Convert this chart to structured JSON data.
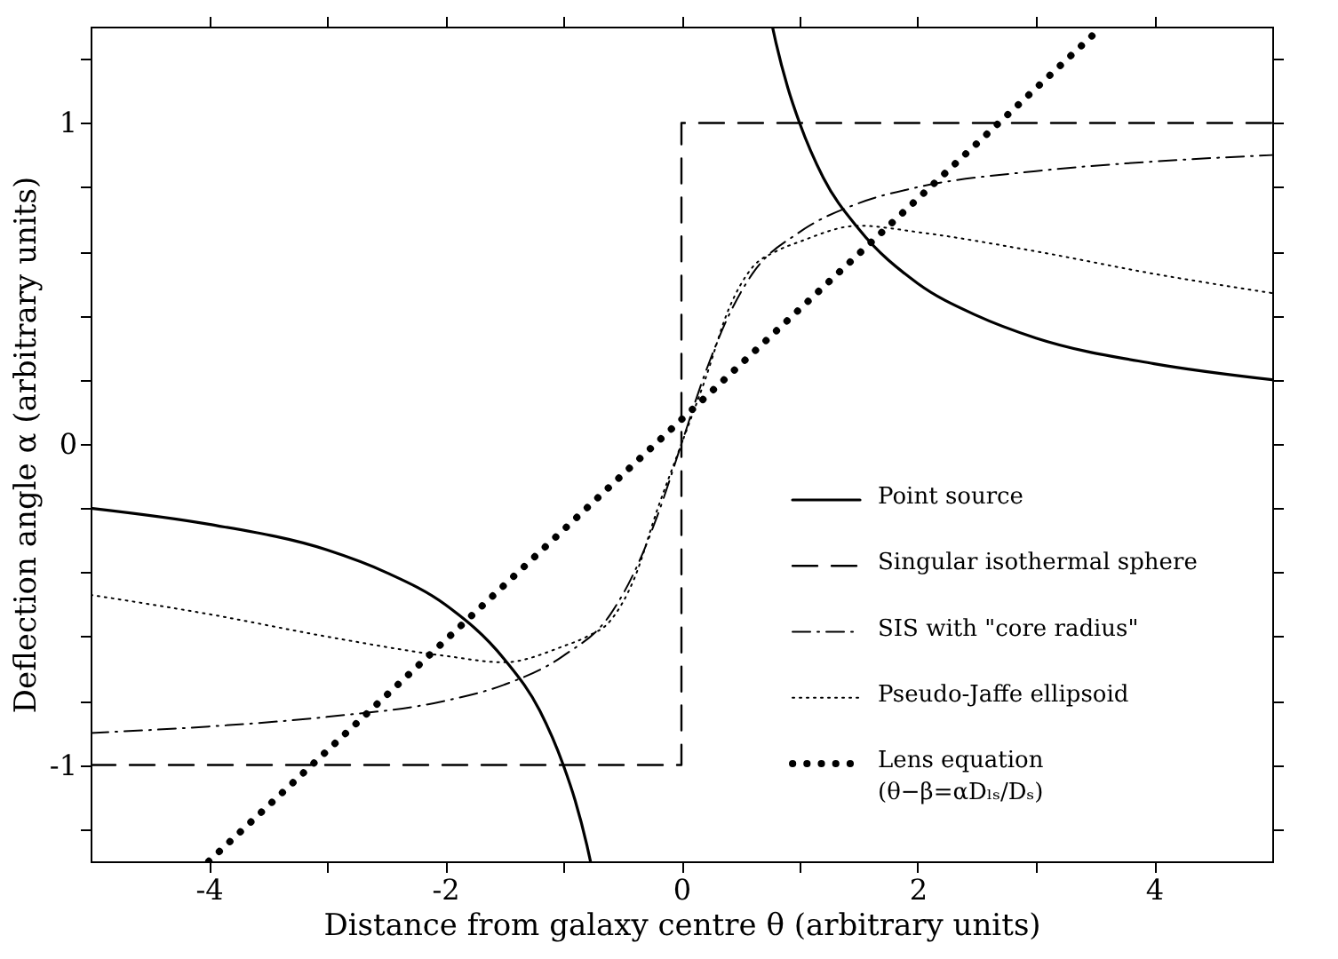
{
  "chart_data": {
    "type": "line",
    "xlabel": "Distance from galaxy centre θ (arbitrary units)",
    "ylabel": "Deflection angle α (arbitrary units)",
    "xlim": [
      -5,
      5
    ],
    "ylim": [
      -1.3,
      1.3
    ],
    "xticks": [
      -4,
      {
        "value": -3,
        "label": null
      },
      -2,
      {
        "value": -1,
        "label": null
      },
      0,
      {
        "value": 1,
        "label": null
      },
      2,
      {
        "value": 3,
        "label": null
      },
      4
    ],
    "yticks": [
      {
        "value": -1.2,
        "label": null
      },
      -1,
      {
        "value": -0.8,
        "label": null
      },
      {
        "value": -0.6,
        "label": null
      },
      {
        "value": -0.4,
        "label": null
      },
      {
        "value": -0.2,
        "label": null
      },
      0,
      {
        "value": 0.2,
        "label": null
      },
      {
        "value": 0.4,
        "label": null
      },
      {
        "value": 0.6,
        "label": null
      },
      {
        "value": 0.8,
        "label": null
      },
      1,
      {
        "value": 1.2,
        "label": null
      }
    ],
    "legend": "bottom right",
    "series": [
      {
        "name": "Point source",
        "color": "#000000",
        "line_style": "solid",
        "x": [
          -5,
          -4,
          -3,
          -2.5,
          -2,
          -1.5,
          -1.2,
          -1,
          -0.9,
          -0.8,
          -0.77,
          0,
          0.77,
          0.8,
          0.9,
          1,
          1.2,
          1.5,
          2,
          2.5,
          3,
          4,
          5
        ],
        "values": [
          -0.2,
          -0.25,
          -0.33,
          -0.4,
          -0.5,
          -0.67,
          -0.83,
          -1,
          -1.11,
          -1.25,
          -1.3,
          null,
          1.3,
          1.25,
          1.11,
          1,
          0.83,
          0.67,
          0.5,
          0.4,
          0.33,
          0.25,
          0.2
        ]
      },
      {
        "name": "Singular isothermal sphere",
        "color": "#000000",
        "line_style": "dashed",
        "x": [
          -5,
          0,
          0,
          5
        ],
        "values": [
          -1,
          -1,
          1,
          1
        ]
      },
      {
        "name": "SIS with \"core radius\"",
        "color": "#000000",
        "line_style": "dashdot",
        "x": [
          -5,
          -4,
          -3,
          -2,
          -1.5,
          -1,
          -0.6,
          -0.4,
          -0.2,
          0,
          0.2,
          0.4,
          0.6,
          1,
          1.5,
          2,
          3,
          4,
          5
        ],
        "values": [
          -0.9,
          -0.88,
          -0.85,
          -0.8,
          -0.75,
          -0.66,
          -0.53,
          -0.4,
          -0.22,
          0,
          0.22,
          0.4,
          0.53,
          0.66,
          0.75,
          0.8,
          0.85,
          0.88,
          0.9
        ]
      },
      {
        "name": "Pseudo-Jaffe ellipsoid",
        "color": "#000000",
        "line_style": "dotted",
        "x": [
          -5,
          -4,
          -3,
          -2,
          -1.5,
          -1,
          -0.8,
          -0.6,
          -0.4,
          -0.2,
          0,
          0.2,
          0.4,
          0.6,
          0.8,
          1,
          1.5,
          2,
          3,
          4,
          5
        ],
        "values": [
          -0.47,
          -0.53,
          -0.6,
          -0.66,
          -0.68,
          -0.63,
          -0.6,
          -0.55,
          -0.42,
          -0.2,
          0,
          0.2,
          0.42,
          0.55,
          0.6,
          0.63,
          0.68,
          0.66,
          0.6,
          0.53,
          0.47
        ]
      },
      {
        "name": "Lens equation\n(θ−β=αDₗₛ/Dₛ)",
        "color": "#000000",
        "line_style": "loosely dotted",
        "x": [
          -4,
          3.5
        ],
        "values": [
          -1.3,
          1.28
        ]
      }
    ]
  }
}
